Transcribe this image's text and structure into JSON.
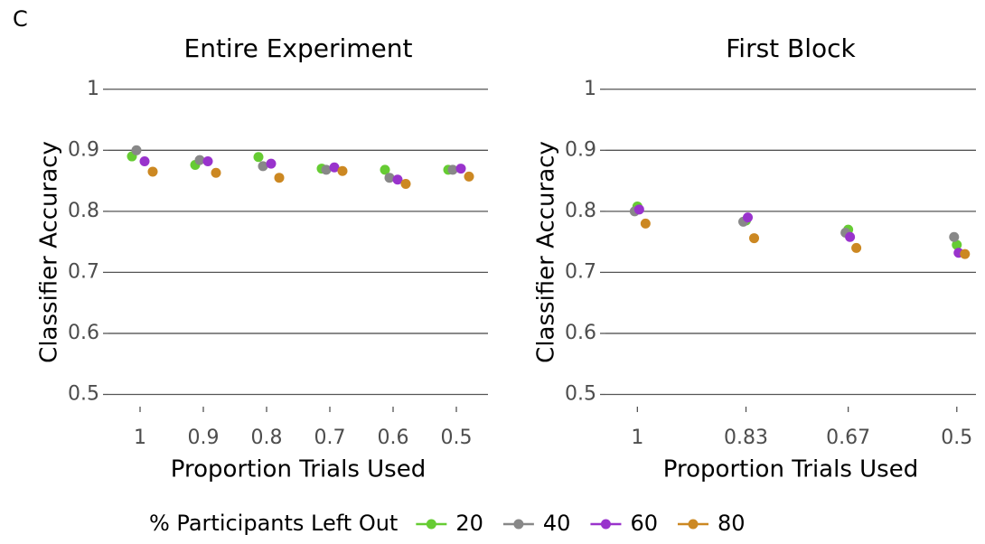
{
  "panel_label": "C",
  "chart_data": [
    {
      "type": "line",
      "title": "Entire Experiment",
      "x_label": "Proportion Trials Used",
      "y_label": "Classifier Accuracy",
      "legend_title": "% Participants Left Out",
      "x": [
        1,
        0.9,
        0.8,
        0.7,
        0.6,
        0.5
      ],
      "xlim": [
        1.05,
        0.45
      ],
      "xticks": [
        1,
        0.9,
        0.8,
        0.7,
        0.6,
        0.5
      ],
      "ylim": [
        0.48,
        1.01
      ],
      "yticks": [
        0.5,
        0.6,
        0.7,
        0.8,
        0.9,
        1
      ],
      "grid": true,
      "series": [
        {
          "name": "20",
          "color": "#66cc33",
          "values": [
            0.89,
            0.876,
            0.889,
            0.87,
            0.868,
            0.868
          ]
        },
        {
          "name": "40",
          "color": "#888888",
          "values": [
            0.9,
            0.884,
            0.874,
            0.868,
            0.855,
            0.868
          ]
        },
        {
          "name": "60",
          "color": "#9933cc",
          "values": [
            0.882,
            0.882,
            0.878,
            0.872,
            0.852,
            0.87
          ]
        },
        {
          "name": "80",
          "color": "#cc8822",
          "values": [
            0.865,
            0.863,
            0.855,
            0.866,
            0.845,
            0.857
          ]
        }
      ]
    },
    {
      "type": "line",
      "title": "First Block",
      "x_label": "Proportion Trials Used",
      "y_label": "Classifier Accuracy",
      "x": [
        1,
        0.83,
        0.67,
        0.5
      ],
      "xlim": [
        1.05,
        0.47
      ],
      "xticks": [
        1,
        0.83,
        0.67,
        0.5
      ],
      "ylim": [
        0.48,
        1.01
      ],
      "yticks": [
        0.5,
        0.6,
        0.7,
        0.8,
        0.9,
        1
      ],
      "grid": true,
      "series": [
        {
          "name": "20",
          "color": "#66cc33",
          "values": [
            0.808,
            0.785,
            0.77,
            0.745
          ]
        },
        {
          "name": "40",
          "color": "#888888",
          "values": [
            0.8,
            0.783,
            0.765,
            0.758
          ]
        },
        {
          "name": "60",
          "color": "#9933cc",
          "values": [
            0.803,
            0.79,
            0.758,
            0.732
          ]
        },
        {
          "name": "80",
          "color": "#cc8822",
          "values": [
            0.78,
            0.756,
            0.74,
            0.73
          ]
        }
      ]
    }
  ]
}
